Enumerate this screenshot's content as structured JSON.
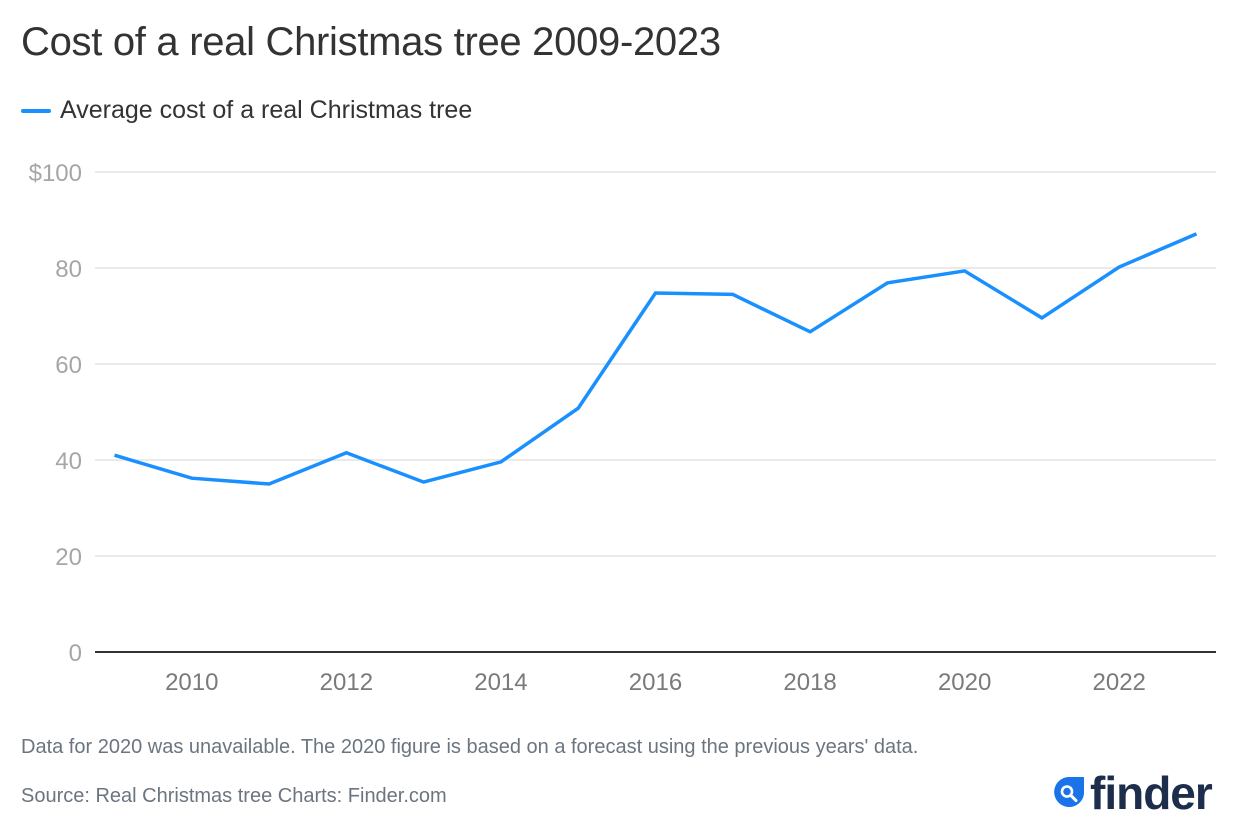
{
  "title": "Cost of a real Christmas tree 2009-2023",
  "legend": {
    "label": "Average cost of a real Christmas tree",
    "color": "#1a90ff"
  },
  "footer": {
    "note": "Data for 2020 was unavailable. The 2020 figure is based on a forecast using the previous years' data.",
    "source": "Source: Real Christmas tree Charts: Finder.com"
  },
  "logo": {
    "icon": "magnifier-drop-icon",
    "text": "finder",
    "brand_color": "#1d2d4c",
    "accent_color": "#1a73e8"
  },
  "chart_data": {
    "type": "line",
    "title": "Cost of a real Christmas tree 2009-2023",
    "xlabel": "",
    "ylabel": "",
    "x": [
      2009,
      2010,
      2011,
      2012,
      2013,
      2014,
      2015,
      2016,
      2017,
      2018,
      2019,
      2020,
      2021,
      2022,
      2023
    ],
    "series": [
      {
        "name": "Average cost of a real Christmas tree",
        "color": "#1a90ff",
        "values": [
          41.0,
          36.2,
          35.0,
          41.5,
          35.4,
          39.6,
          50.8,
          74.8,
          74.5,
          66.7,
          76.9,
          79.4,
          69.6,
          80.2,
          87.1
        ]
      }
    ],
    "xlim": [
      2009,
      2023
    ],
    "ylim": [
      0,
      100
    ],
    "yticks": [
      0,
      20,
      40,
      60,
      80,
      100
    ],
    "ytick_labels": [
      "0",
      "20",
      "40",
      "60",
      "80",
      "$100"
    ],
    "xticks": [
      2010,
      2012,
      2014,
      2016,
      2018,
      2020,
      2022
    ],
    "xtick_labels": [
      "2010",
      "2012",
      "2014",
      "2016",
      "2018",
      "2020",
      "2022"
    ],
    "grid": "horizontal",
    "legend_position": "top-left"
  }
}
